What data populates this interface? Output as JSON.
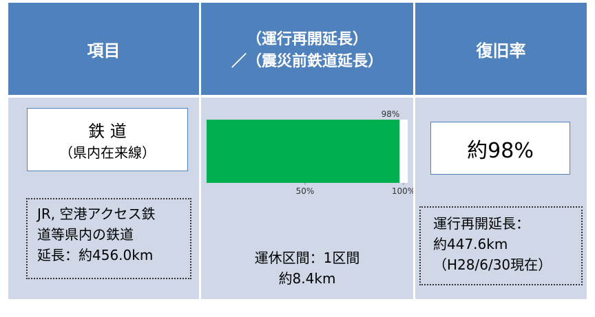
{
  "header": {
    "columns": [
      "項目",
      [
        "（運行再開延長）",
        "／（震災前鉄道延長）"
      ],
      "復旧率"
    ]
  },
  "item": {
    "box": [
      "鉄 道",
      "（県内在来線）"
    ],
    "note": [
      "JR, 空港アクセス鉄",
      "道等県内の鉄道",
      "延長：約456.0km"
    ]
  },
  "chart_data": {
    "type": "bar",
    "values": [
      98
    ],
    "value_labels": [
      "98%"
    ],
    "color": "#00b050",
    "xlim": [
      0,
      100
    ],
    "xticks": [
      {
        "value": 50,
        "label": "50%"
      },
      {
        "value": 100,
        "label": "100%"
      }
    ]
  },
  "suspended": [
    "運休区間：1区間",
    "約8.4km"
  ],
  "rate": {
    "box": "約98%",
    "note": [
      "運行再開延長：",
      "約447.6km",
      "（H28/6/30現在）"
    ]
  }
}
